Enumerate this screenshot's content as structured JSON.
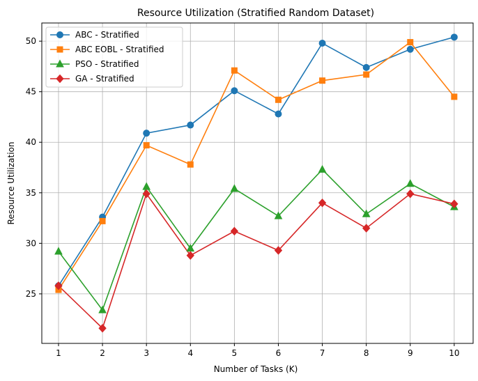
{
  "chart_data": {
    "type": "line",
    "title": "Resource Utilization (Stratified Random Dataset)",
    "xlabel": "Number of Tasks (K)",
    "ylabel": "Resource Utilization",
    "x": [
      1,
      2,
      3,
      4,
      5,
      6,
      7,
      8,
      9,
      10
    ],
    "xlim": [
      0.62,
      10.43
    ],
    "ylim": [
      20.1,
      51.8
    ],
    "yticks": [
      25,
      30,
      35,
      40,
      45,
      50
    ],
    "grid": true,
    "legend_position": "upper-left",
    "series": [
      {
        "name": "ABC - Stratified",
        "color": "#1f77b4",
        "marker": "circle",
        "values": [
          25.8,
          32.6,
          40.9,
          41.7,
          45.1,
          42.8,
          49.8,
          47.4,
          49.2,
          50.4
        ]
      },
      {
        "name": "ABC EOBL - Stratified",
        "color": "#ff7f0e",
        "marker": "square",
        "values": [
          25.4,
          32.2,
          39.7,
          37.8,
          47.1,
          44.2,
          46.1,
          46.7,
          49.9,
          44.5
        ]
      },
      {
        "name": "PSO - Stratified",
        "color": "#2ca02c",
        "marker": "triangle",
        "values": [
          29.2,
          23.4,
          35.6,
          29.5,
          35.4,
          32.7,
          37.3,
          32.9,
          35.9,
          33.6
        ]
      },
      {
        "name": "GA - Stratified",
        "color": "#d62728",
        "marker": "diamond",
        "values": [
          25.8,
          21.6,
          34.9,
          28.8,
          31.2,
          29.3,
          34.0,
          31.5,
          34.9,
          33.9
        ]
      }
    ]
  }
}
